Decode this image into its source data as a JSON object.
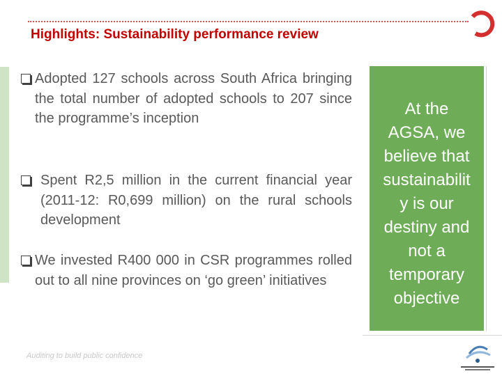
{
  "header": {
    "title": "Highlights: Sustainability performance review"
  },
  "bullets": [
    "Adopted 127 schools across South Africa bringing the total number of adopted schools to 207 since the programme’s inception",
    "Spent R2,5 million in the current financial year (2011-12: R0,699 million) on the rural schools development",
    "We invested R400 000 in CSR programmes rolled out to all nine provinces on ‘go green’ initiatives"
  ],
  "callout": {
    "lines": [
      "At the",
      "AGSA, we",
      "believe that",
      "sustainabilit",
      "y is our",
      "destiny and",
      "not a",
      "temporary",
      "objective"
    ]
  },
  "footer": "Auditing to build public confidence"
}
